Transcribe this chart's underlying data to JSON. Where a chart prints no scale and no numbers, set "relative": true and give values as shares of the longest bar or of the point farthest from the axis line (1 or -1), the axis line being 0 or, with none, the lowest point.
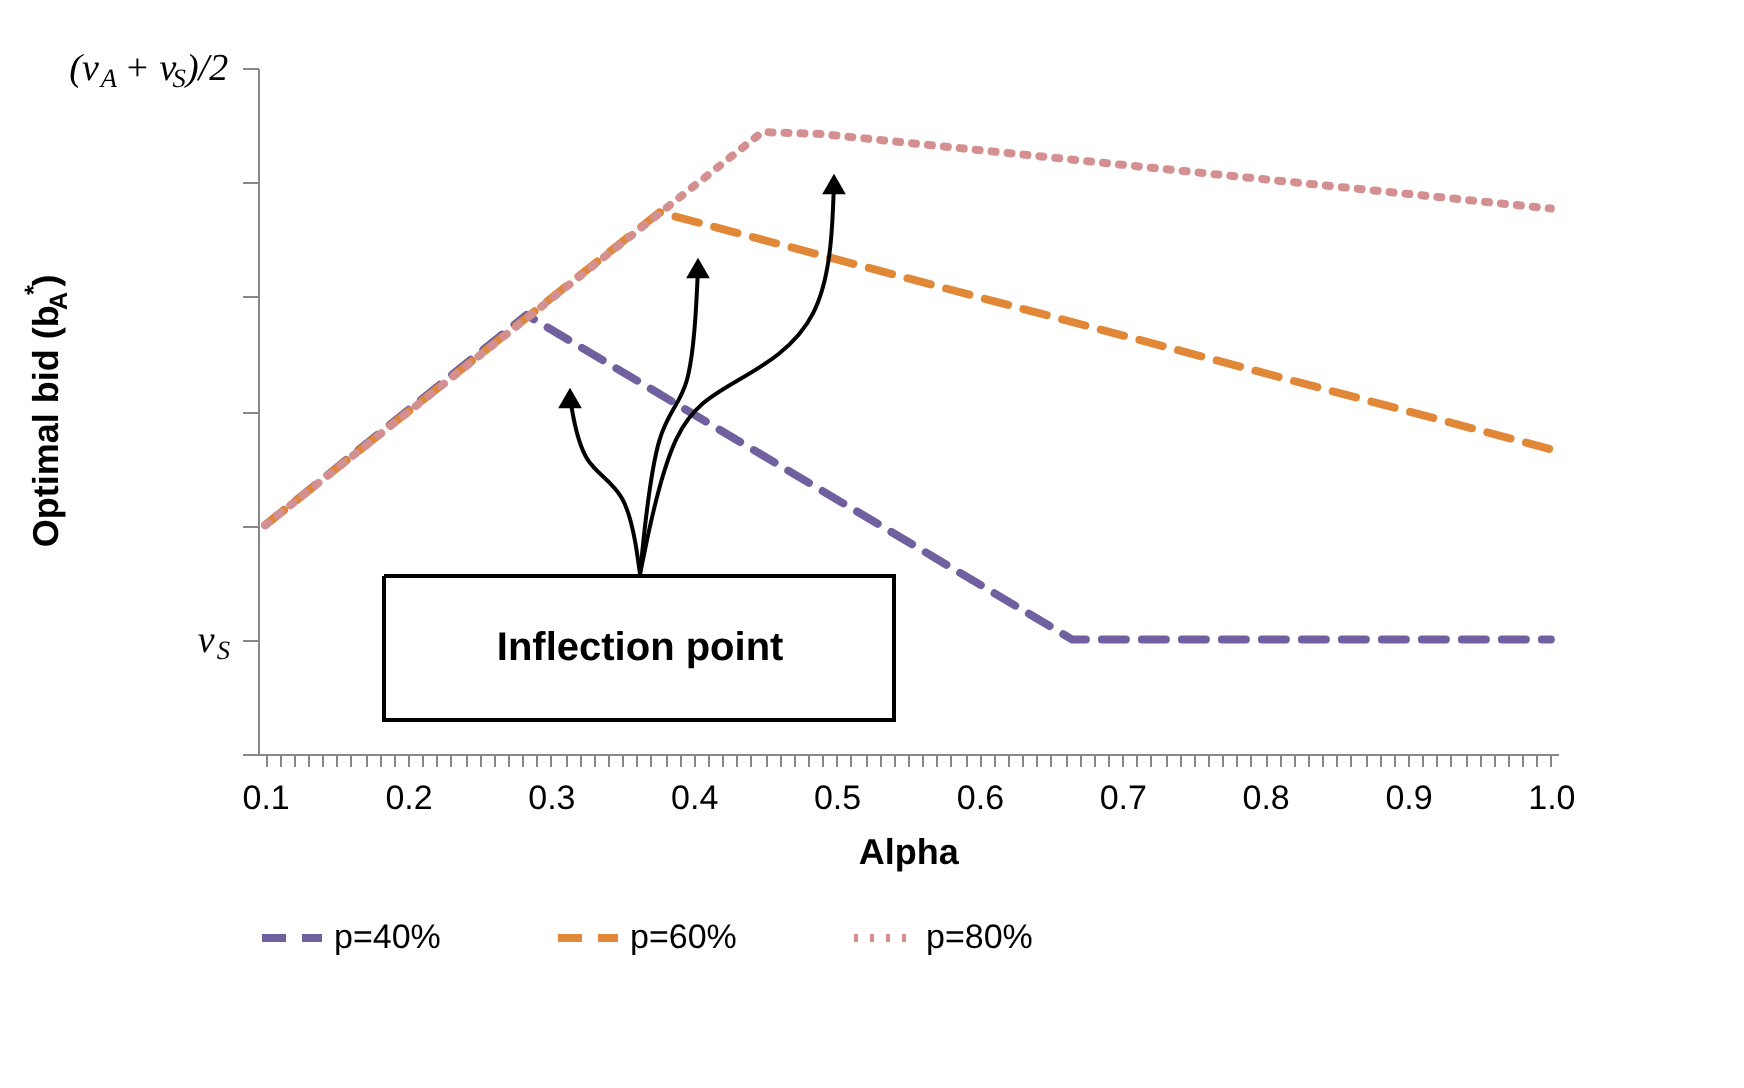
{
  "chart_data": {
    "type": "line",
    "relative": true,
    "xlabel": "Alpha",
    "ylabel": "Optimal bid (b$_{A}$$^{*}$)",
    "annotations": [
      "Inflection point",
      "v$_{S}$",
      "(v$_{A}$ + v$_{S}$)/2"
    ],
    "xlim": [
      0.095,
      1.005
    ],
    "xticks": [
      0.1,
      {
        "value": 0.11,
        "label": null
      },
      {
        "value": 0.12,
        "label": null
      },
      {
        "value": 0.13,
        "label": null
      },
      {
        "value": 0.14,
        "label": null
      },
      {
        "value": 0.15,
        "label": null
      },
      {
        "value": 0.16,
        "label": null
      },
      {
        "value": 0.17,
        "label": null
      },
      {
        "value": 0.18,
        "label": null
      },
      {
        "value": 0.19,
        "label": null
      },
      0.2,
      {
        "value": 0.21,
        "label": null
      },
      {
        "value": 0.22,
        "label": null
      },
      {
        "value": 0.23,
        "label": null
      },
      {
        "value": 0.24,
        "label": null
      },
      {
        "value": 0.25,
        "label": null
      },
      {
        "value": 0.26,
        "label": null
      },
      {
        "value": 0.27,
        "label": null
      },
      {
        "value": 0.28,
        "label": null
      },
      {
        "value": 0.29,
        "label": null
      },
      0.3,
      {
        "value": 0.31,
        "label": null
      },
      {
        "value": 0.32,
        "label": null
      },
      {
        "value": 0.33,
        "label": null
      },
      {
        "value": 0.34,
        "label": null
      },
      {
        "value": 0.35,
        "label": null
      },
      {
        "value": 0.36,
        "label": null
      },
      {
        "value": 0.37,
        "label": null
      },
      {
        "value": 0.38,
        "label": null
      },
      {
        "value": 0.39,
        "label": null
      },
      0.4,
      {
        "value": 0.41,
        "label": null
      },
      {
        "value": 0.42,
        "label": null
      },
      {
        "value": 0.43,
        "label": null
      },
      {
        "value": 0.44,
        "label": null
      },
      {
        "value": 0.45,
        "label": null
      },
      {
        "value": 0.46,
        "label": null
      },
      {
        "value": 0.47,
        "label": null
      },
      {
        "value": 0.48,
        "label": null
      },
      {
        "value": 0.49,
        "label": null
      },
      0.5,
      {
        "value": 0.51,
        "label": null
      },
      {
        "value": 0.52,
        "label": null
      },
      {
        "value": 0.53,
        "label": null
      },
      {
        "value": 0.54,
        "label": null
      },
      {
        "value": 0.55,
        "label": null
      },
      {
        "value": 0.56,
        "label": null
      },
      {
        "value": 0.57,
        "label": null
      },
      {
        "value": 0.58,
        "label": null
      },
      {
        "value": 0.59,
        "label": null
      },
      0.6,
      {
        "value": 0.61,
        "label": null
      },
      {
        "value": 0.62,
        "label": null
      },
      {
        "value": 0.63,
        "label": null
      },
      {
        "value": 0.64,
        "label": null
      },
      {
        "value": 0.65,
        "label": null
      },
      {
        "value": 0.66,
        "label": null
      },
      {
        "value": 0.67,
        "label": null
      },
      {
        "value": 0.68,
        "label": null
      },
      {
        "value": 0.69,
        "label": null
      },
      0.7,
      {
        "value": 0.71,
        "label": null
      },
      {
        "value": 0.72,
        "label": null
      },
      {
        "value": 0.73,
        "label": null
      },
      {
        "value": 0.74,
        "label": null
      },
      {
        "value": 0.75,
        "label": null
      },
      {
        "value": 0.76,
        "label": null
      },
      {
        "value": 0.77,
        "label": null
      },
      {
        "value": 0.78,
        "label": null
      },
      {
        "value": 0.79,
        "label": null
      },
      0.8,
      {
        "value": 0.81,
        "label": null
      },
      {
        "value": 0.82,
        "label": null
      },
      {
        "value": 0.83,
        "label": null
      },
      {
        "value": 0.84,
        "label": null
      },
      {
        "value": 0.85,
        "label": null
      },
      {
        "value": 0.86,
        "label": null
      },
      {
        "value": 0.87,
        "label": null
      },
      {
        "value": 0.88,
        "label": null
      },
      {
        "value": 0.89,
        "label": null
      },
      0.9,
      {
        "value": 0.91,
        "label": null
      },
      {
        "value": 0.92,
        "label": null
      },
      {
        "value": 0.93,
        "label": null
      },
      {
        "value": 0.94,
        "label": null
      },
      {
        "value": 0.95,
        "label": null
      },
      {
        "value": 0.96,
        "label": null
      },
      {
        "value": 0.97,
        "label": null
      },
      {
        "value": 0.98,
        "label": null
      },
      {
        "value": 0.99,
        "label": null
      },
      {
        "value": 1,
        "label": "1.0"
      }
    ],
    "grid": false,
    "legend": "bottom",
    "series": [
      {
        "name": "p=40%",
        "color": "#7060a0",
        "line_style": "dashed",
        "x": [
          0.1,
          0.283,
          0.665,
          1.0
        ],
        "values": [
          0.368,
          0.706,
          0.184,
          0.184
        ]
      },
      {
        "name": "p=60%",
        "color": "#e08838",
        "line_style": "dashed",
        "x": [
          0.1,
          0.376,
          1.0
        ],
        "values": [
          0.368,
          0.871,
          0.49
        ]
      },
      {
        "name": "p=80%",
        "color": "#d49090",
        "line_style": "dotted",
        "x": [
          0.1,
          0.448,
          0.489,
          1.0
        ],
        "values": [
          0.368,
          1.0,
          0.997,
          0.877
        ]
      }
    ]
  }
}
